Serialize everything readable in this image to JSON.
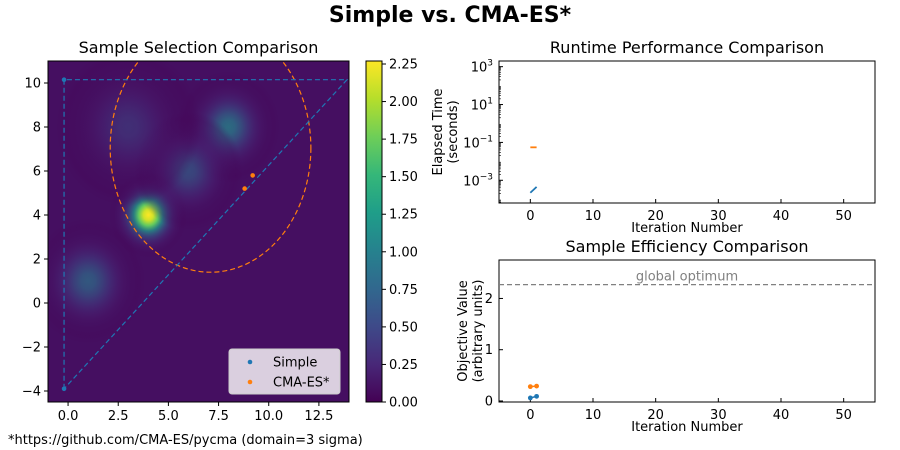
{
  "suptitle": "Simple vs. CMA-ES*",
  "footnote": "*https://github.com/CMA-ES/pycma (domain=3 sigma)",
  "colors": {
    "simple": "#1f77b4",
    "cma": "#ff7f0e",
    "optimum": "#808080"
  },
  "chart_data": [
    {
      "type": "heatmap",
      "title": "Sample Selection Comparison",
      "xlabel": "",
      "ylabel": "",
      "xlim": [
        -1.0,
        14.0
      ],
      "ylim": [
        -4.5,
        11.0
      ],
      "xticks": [
        0.0,
        2.5,
        5.0,
        7.5,
        10.0,
        12.5
      ],
      "xtick_labels": [
        "0.0",
        "2.5",
        "5.0",
        "7.5",
        "10.0",
        "12.5"
      ],
      "yticks": [
        -4,
        -2,
        0,
        2,
        4,
        6,
        8,
        10
      ],
      "ytick_labels": [
        "−4",
        "−2",
        "0",
        "2",
        "4",
        "6",
        "8",
        "10"
      ],
      "colormap": "viridis",
      "colorbar": {
        "range": [
          0.0,
          2.27
        ],
        "ticks": [
          0.0,
          0.25,
          0.5,
          0.75,
          1.0,
          1.25,
          1.5,
          1.75,
          2.0,
          2.25
        ],
        "tick_labels": [
          "0.00",
          "0.25",
          "0.50",
          "0.75",
          "1.00",
          "1.25",
          "1.50",
          "1.75",
          "2.00",
          "2.25"
        ]
      },
      "peaks": [
        {
          "x": 4.0,
          "y": 4.0,
          "amp": 2.27,
          "sigma": 0.65
        },
        {
          "x": 8.0,
          "y": 8.0,
          "amp": 1.1,
          "sigma": 0.85
        },
        {
          "x": 1.0,
          "y": 1.0,
          "amp": 0.95,
          "sigma": 0.95
        },
        {
          "x": 6.0,
          "y": 6.0,
          "amp": 0.8,
          "sigma": 0.9
        },
        {
          "x": 3.0,
          "y": 8.0,
          "amp": 0.55,
          "sigma": 1.2
        }
      ],
      "simple_region": [
        [
          -0.2,
          -3.9
        ],
        [
          -0.2,
          10.15
        ],
        [
          13.9,
          10.15
        ]
      ],
      "cma_ellipse": {
        "cx": 7.1,
        "cy": 7.05,
        "rx": 5.0,
        "ry": 5.65
      },
      "series": [
        {
          "name": "Simple",
          "points": [
            [
              -0.2,
              -3.9
            ],
            [
              -0.2,
              10.15
            ]
          ]
        },
        {
          "name": "CMA-ES*",
          "points": [
            [
              8.8,
              5.2
            ],
            [
              9.2,
              5.8
            ]
          ]
        }
      ],
      "legend": "lower-right"
    },
    {
      "type": "line",
      "title": "Runtime Performance Comparison",
      "xlabel": "Iteration Number",
      "ylabel_lines": [
        "Elapsed Time",
        "(seconds)"
      ],
      "yscale": "log",
      "xlim": [
        -5,
        55
      ],
      "ylim_log10": [
        -4.2,
        3.3
      ],
      "xticks": [
        0,
        10,
        20,
        30,
        40,
        50
      ],
      "ytick_log10": [
        -3,
        -1,
        1,
        3
      ],
      "series": [
        {
          "name": "Simple",
          "x": [
            0,
            1
          ],
          "y": [
            0.00022,
            0.00045
          ]
        },
        {
          "name": "CMA-ES*",
          "x": [
            0,
            1
          ],
          "y": [
            0.055,
            0.055
          ]
        }
      ]
    },
    {
      "type": "scatter",
      "title": "Sample Efficiency Comparison",
      "xlabel": "Iteration Number",
      "ylabel_lines": [
        "Objective Value",
        "(arbitrary units)"
      ],
      "xlim": [
        -5,
        55
      ],
      "ylim": [
        -0.02,
        2.75
      ],
      "xticks": [
        0,
        10,
        20,
        30,
        40,
        50
      ],
      "yticks": [
        0,
        1,
        2
      ],
      "optimum": {
        "value": 2.27,
        "label": "global optimum"
      },
      "series": [
        {
          "name": "Simple",
          "x": [
            0,
            1
          ],
          "y": [
            0.06,
            0.09
          ]
        },
        {
          "name": "CMA-ES*",
          "x": [
            0,
            1
          ],
          "y": [
            0.28,
            0.29
          ]
        }
      ]
    }
  ]
}
